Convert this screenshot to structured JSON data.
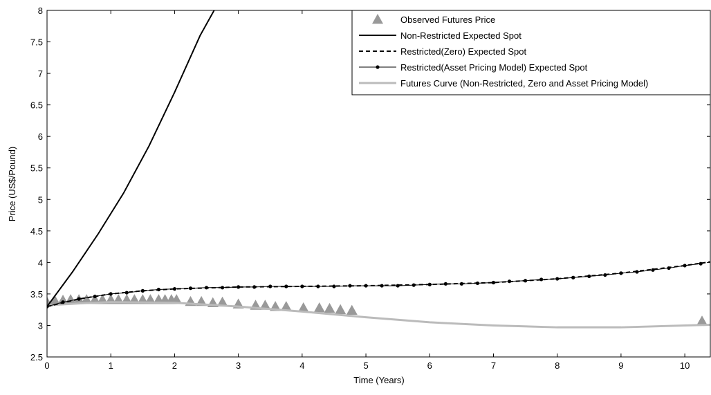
{
  "chart_data": {
    "type": "line",
    "xlabel": "Time (Years)",
    "ylabel": "Price (US$/Pound)",
    "xlim": [
      0,
      10.4
    ],
    "ylim": [
      2.5,
      8
    ],
    "xticks": [
      0,
      1,
      2,
      3,
      4,
      5,
      6,
      7,
      8,
      9,
      10
    ],
    "yticks": [
      2.5,
      3,
      3.5,
      4,
      4.5,
      5,
      5.5,
      6,
      6.5,
      7,
      7.5,
      8
    ],
    "legend": "upper right",
    "series": [
      {
        "name": "Observed Futures Price",
        "style": "triangle",
        "color": "#999999",
        "x": [
          0,
          0.12,
          0.25,
          0.37,
          0.5,
          0.62,
          0.75,
          0.87,
          1.0,
          1.12,
          1.25,
          1.37,
          1.5,
          1.62,
          1.75,
          1.85,
          1.95,
          2.03,
          2.25,
          2.42,
          2.6,
          2.75,
          3.0,
          3.27,
          3.42,
          3.58,
          3.75,
          4.02,
          4.27,
          4.43,
          4.6,
          4.78,
          10.27
        ],
        "values": [
          3.37,
          3.4,
          3.4,
          3.41,
          3.41,
          3.41,
          3.41,
          3.41,
          3.41,
          3.41,
          3.41,
          3.41,
          3.41,
          3.41,
          3.41,
          3.41,
          3.41,
          3.41,
          3.38,
          3.38,
          3.36,
          3.37,
          3.34,
          3.32,
          3.32,
          3.3,
          3.3,
          3.28,
          3.28,
          3.27,
          3.25,
          3.24,
          3.07
        ]
      },
      {
        "name": "Non-Restricted Expected Spot",
        "style": "solid",
        "color": "#000000",
        "x": [
          0,
          0.4,
          0.8,
          1.2,
          1.6,
          2.0,
          2.4,
          2.62
        ],
        "values": [
          3.3,
          3.85,
          4.45,
          5.1,
          5.85,
          6.7,
          7.6,
          8.0
        ]
      },
      {
        "name": "Restricted(Zero) Expected Spot",
        "style": "dashed",
        "color": "#000000",
        "x": [
          0,
          0.5,
          1,
          1.5,
          2,
          3,
          4,
          5,
          6,
          7,
          8,
          9,
          10,
          10.4
        ],
        "values": [
          3.3,
          3.42,
          3.5,
          3.55,
          3.58,
          3.61,
          3.62,
          3.63,
          3.65,
          3.68,
          3.74,
          3.83,
          3.95,
          4.01
        ]
      },
      {
        "name": "Restricted(Asset Pricing Model) Expected Spot",
        "style": "dotted-marker",
        "color": "#000000",
        "x": [
          0,
          0.25,
          0.5,
          0.75,
          1,
          1.25,
          1.5,
          1.75,
          2,
          2.25,
          2.5,
          2.75,
          3,
          3.25,
          3.5,
          3.75,
          4,
          4.25,
          4.5,
          4.75,
          5,
          5.25,
          5.5,
          5.75,
          6,
          6.25,
          6.5,
          6.75,
          7,
          7.25,
          7.5,
          7.75,
          8,
          8.25,
          8.5,
          8.75,
          9,
          9.25,
          9.5,
          9.75,
          10,
          10.25
        ],
        "values": [
          3.3,
          3.37,
          3.42,
          3.46,
          3.5,
          3.52,
          3.55,
          3.57,
          3.58,
          3.59,
          3.6,
          3.6,
          3.61,
          3.61,
          3.62,
          3.62,
          3.62,
          3.62,
          3.62,
          3.63,
          3.63,
          3.63,
          3.63,
          3.64,
          3.65,
          3.66,
          3.66,
          3.67,
          3.68,
          3.7,
          3.71,
          3.73,
          3.74,
          3.76,
          3.78,
          3.8,
          3.83,
          3.85,
          3.88,
          3.91,
          3.95,
          3.98
        ]
      },
      {
        "name": "Futures Curve (Non-Restricted, Zero and Asset Pricing Model)",
        "style": "solid",
        "color": "#bbbbbb",
        "x": [
          0,
          0.5,
          1,
          2,
          3,
          4,
          5,
          6,
          7,
          8,
          9,
          10,
          10.4
        ],
        "values": [
          3.32,
          3.35,
          3.37,
          3.36,
          3.3,
          3.22,
          3.13,
          3.05,
          3.0,
          2.97,
          2.97,
          3.0,
          3.01
        ]
      }
    ]
  }
}
